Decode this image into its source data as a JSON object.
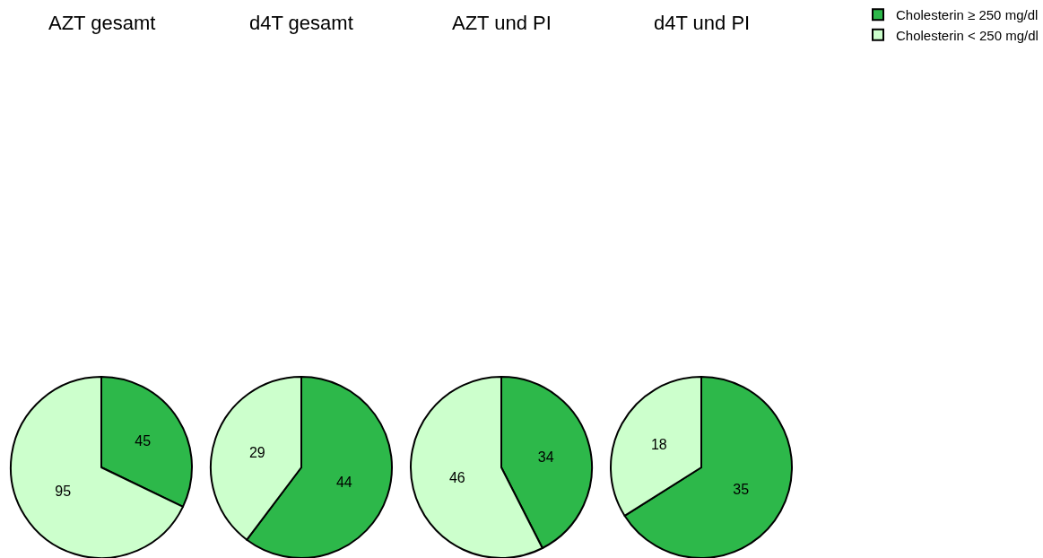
{
  "chart_data": [
    {
      "type": "pie",
      "title": "AZT gesamt",
      "categories": [
        "Cholesterin ≥ 250 mg/dl",
        "Cholesterin < 250 mg/dl"
      ],
      "values": [
        45,
        95
      ],
      "colors": [
        "#2db84a",
        "#ccffcc"
      ],
      "data_labels": true,
      "legend": "top right"
    },
    {
      "type": "pie",
      "title": "d4T gesamt",
      "categories": [
        null,
        null
      ],
      "values": [
        44,
        29
      ],
      "colors": [
        "#2db84a",
        "#ccffcc"
      ],
      "data_labels": true
    },
    {
      "type": "pie",
      "title": "AZT und PI",
      "categories": [
        null,
        null
      ],
      "values": [
        34,
        46
      ],
      "colors": [
        "#2db84a",
        "#ccffcc"
      ],
      "data_labels": true
    },
    {
      "type": "pie",
      "title": "d4T und PI",
      "categories": [
        null,
        null
      ],
      "values": [
        35,
        18
      ],
      "colors": [
        "#2db84a",
        "#ccffcc"
      ],
      "data_labels": true
    }
  ]
}
